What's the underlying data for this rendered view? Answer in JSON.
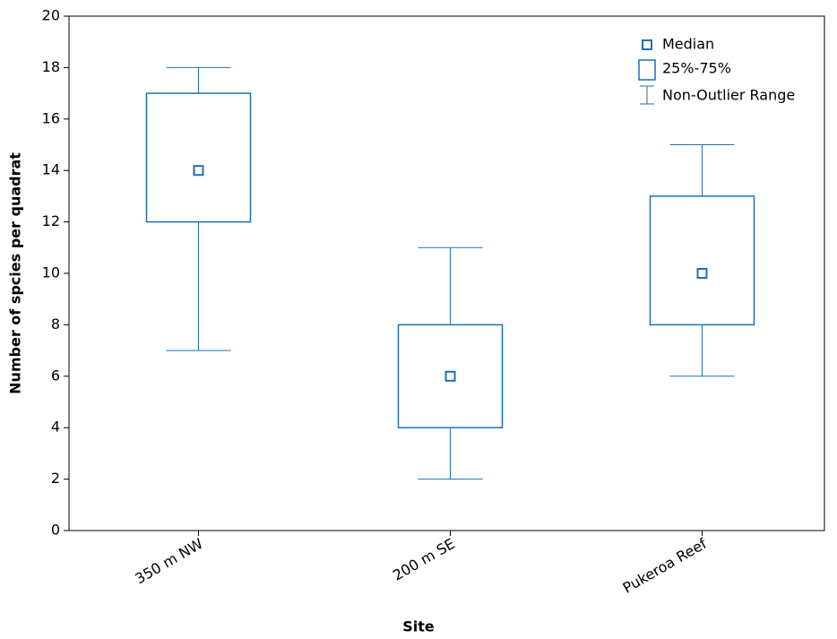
{
  "chart_data": {
    "type": "box",
    "x_label": "Site",
    "y_label": "Number of spcies per quadrat",
    "categories": [
      "350 m NW",
      "200 m SE",
      "Pukeroa Reef"
    ],
    "color": "#1f6fb2",
    "min": [
      7,
      2,
      6
    ],
    "q1": [
      12,
      4,
      8
    ],
    "median": [
      14,
      6,
      10
    ],
    "q3": [
      17,
      8,
      13
    ],
    "max": [
      18,
      11,
      15
    ],
    "ylim": [
      0,
      20
    ],
    "yticks": [
      0,
      2,
      4,
      6,
      8,
      10,
      12,
      14,
      16,
      18,
      20
    ],
    "legend_position": "upper right",
    "legend_labels": {
      "median": "Median",
      "box": "25%-75%",
      "whisker": "Non-Outlier Range"
    }
  }
}
